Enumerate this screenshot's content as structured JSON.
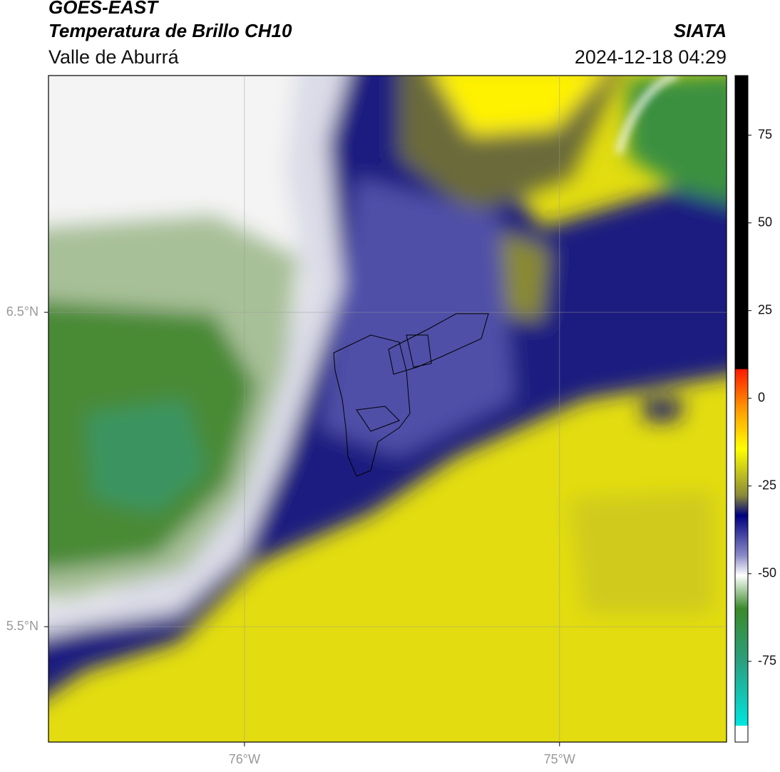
{
  "header": {
    "title": "GOES-EAST",
    "subtitle": "Temperatura de Brillo CH10",
    "region": "Valle de Aburrá",
    "source": "SIATA",
    "datetime": "2024-12-18 04:29"
  },
  "map": {
    "xlim": [
      -76.622,
      -74.47
    ],
    "ylim": [
      5.133,
      7.253
    ],
    "xticks": [
      {
        "value": -76,
        "label": "76°W"
      },
      {
        "value": -75,
        "label": "75°W"
      }
    ],
    "yticks": [
      {
        "value": 6.5,
        "label": "6.5°N"
      },
      {
        "value": 5.5,
        "label": "5.5°N"
      }
    ]
  },
  "colorbar": {
    "lim": [
      -98,
      92
    ],
    "ticks": [
      75,
      50,
      25,
      0,
      -25,
      -50,
      -75
    ]
  }
}
